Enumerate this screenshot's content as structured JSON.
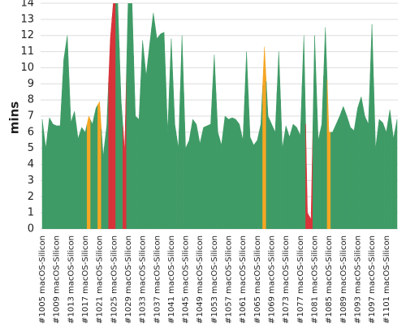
{
  "chart_data": {
    "type": "area",
    "y_label": "mins",
    "ylim": [
      0,
      14
    ],
    "yticks": [
      0,
      1,
      2,
      3,
      4,
      5,
      6,
      7,
      8,
      9,
      10,
      11,
      12,
      13,
      14
    ],
    "grid": true,
    "color": "#3f9b66",
    "categories": [
      "#1005 macOS-Silicon",
      null,
      null,
      null,
      "#1009 macOS-Silicon",
      null,
      null,
      null,
      "#1013 macOS-Silicon",
      null,
      null,
      null,
      "#1017 macOS-Silicon",
      null,
      null,
      null,
      "#1021 macOS-Silicon",
      null,
      null,
      null,
      "#1025 macOS-Silicon",
      null,
      null,
      null,
      "#1029 macOS-Silicon",
      null,
      null,
      null,
      "#1033 macOS-Silicon",
      null,
      null,
      null,
      "#1037 macOS-Silicon",
      null,
      null,
      null,
      "#1041 macOS-Silicon",
      null,
      null,
      null,
      "#1045 macOS-Silicon",
      null,
      null,
      null,
      "#1049 macOS-Silicon",
      null,
      null,
      null,
      "#1053 macOS-Silicon",
      null,
      null,
      null,
      "#1057 macOS-Silicon",
      null,
      null,
      null,
      "#1061 macOS-Silicon",
      null,
      null,
      null,
      "#1065 macOS-Silicon",
      null,
      null,
      null,
      "#1069 macOS-Silicon",
      null,
      null,
      null,
      "#1073 macOS-Silicon",
      null,
      null,
      null,
      "#1077 macOS-Silicon",
      null,
      null,
      null,
      "#1081 macOS-Silicon",
      null,
      null,
      null,
      "#1085 macOS-Silicon",
      null,
      null,
      null,
      "#1089 macOS-Silicon",
      null,
      null,
      null,
      "#1093 macOS-Silicon",
      null,
      null,
      null,
      "#1097 macOS-Silicon",
      null,
      null,
      null,
      "#1101 macOS-Silicon",
      null,
      null,
      null
    ],
    "values": [
      6.8,
      5.0,
      6.9,
      6.5,
      6.4,
      6.4,
      10.5,
      12.0,
      6.6,
      7.3,
      5.6,
      6.3,
      6.0,
      7.0,
      6.5,
      7.5,
      7.9,
      4.5,
      6.4,
      11.8,
      14.5,
      14.5,
      8.0,
      4.8,
      14.5,
      14.5,
      7.0,
      6.8,
      11.7,
      9.5,
      11.5,
      13.4,
      11.8,
      12.1,
      12.2,
      6.0,
      11.8,
      6.5,
      5.0,
      12.0,
      5.0,
      5.5,
      6.8,
      6.5,
      5.3,
      6.3,
      6.4,
      6.5,
      10.8,
      6.0,
      5.2,
      7.0,
      6.8,
      6.9,
      6.8,
      6.5,
      5.5,
      11.0,
      5.7,
      5.2,
      5.5,
      6.5,
      11.3,
      7.0,
      6.5,
      6.0,
      11.0,
      5.0,
      6.4,
      5.7,
      6.5,
      6.3,
      5.8,
      12.0,
      1.0,
      0.6,
      12.0,
      5.5,
      6.5,
      12.5,
      6.0,
      6.0,
      6.5,
      7.0,
      7.6,
      7.0,
      6.3,
      6.1,
      7.5,
      8.2,
      7.0,
      6.5,
      12.7,
      5.0,
      6.8,
      6.6,
      6.0,
      7.4,
      5.6,
      6.8
    ],
    "point_colors": {
      "13": "#f5a623",
      "16": "#f5a623",
      "19": "#d8333a",
      "20": "#d8333a",
      "23": "#d8333a",
      "62": "#f5a623",
      "74": "#d8333a",
      "75": "#d8333a",
      "80": "#f5a623"
    }
  }
}
